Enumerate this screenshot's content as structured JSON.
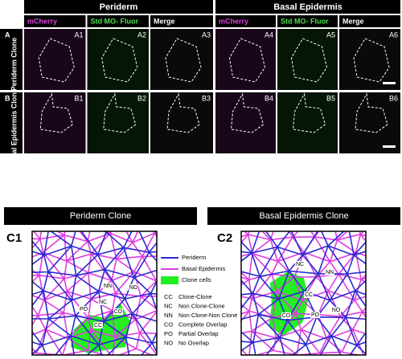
{
  "top": {
    "groups": [
      "Periderm",
      "Basal Epidermis"
    ],
    "columns": [
      "mCherry",
      "Std MO- Fluor",
      "Merge",
      "mCherry",
      "Std MO- Fluor",
      "Merge"
    ],
    "rows": [
      {
        "letter": "A",
        "label": "Periderm Clone",
        "panels": [
          "A1",
          "A2",
          "A3",
          "A4",
          "A5",
          "A6"
        ]
      },
      {
        "letter": "B",
        "label": "Basal Epidermis Clone",
        "panels": [
          "B1",
          "B2",
          "B3",
          "B4",
          "B5",
          "B6"
        ]
      }
    ]
  },
  "bottom": {
    "panels": [
      {
        "title": "Periderm Clone",
        "label": "C1",
        "annotations": [
          "NN",
          "NO",
          "NC",
          "PO",
          "CO",
          "CC"
        ]
      },
      {
        "title": "Basal Epidermis Clone",
        "label": "C2",
        "annotations": [
          "NC",
          "NN",
          "CC",
          "CO",
          "PO",
          "NO"
        ]
      }
    ],
    "legend": [
      "Periderm",
      "Basal Epidermis",
      "Clone cells"
    ],
    "abbreviations": [
      [
        "CC",
        "Clone-Clone"
      ],
      [
        "NC",
        "Non Clone-Clone"
      ],
      [
        "NN",
        "Non Clone-Non Clone"
      ],
      [
        "CO",
        "Complete Overlap"
      ],
      [
        "PO",
        "Partial Overlap"
      ],
      [
        "NO",
        "No Overlap"
      ]
    ]
  }
}
